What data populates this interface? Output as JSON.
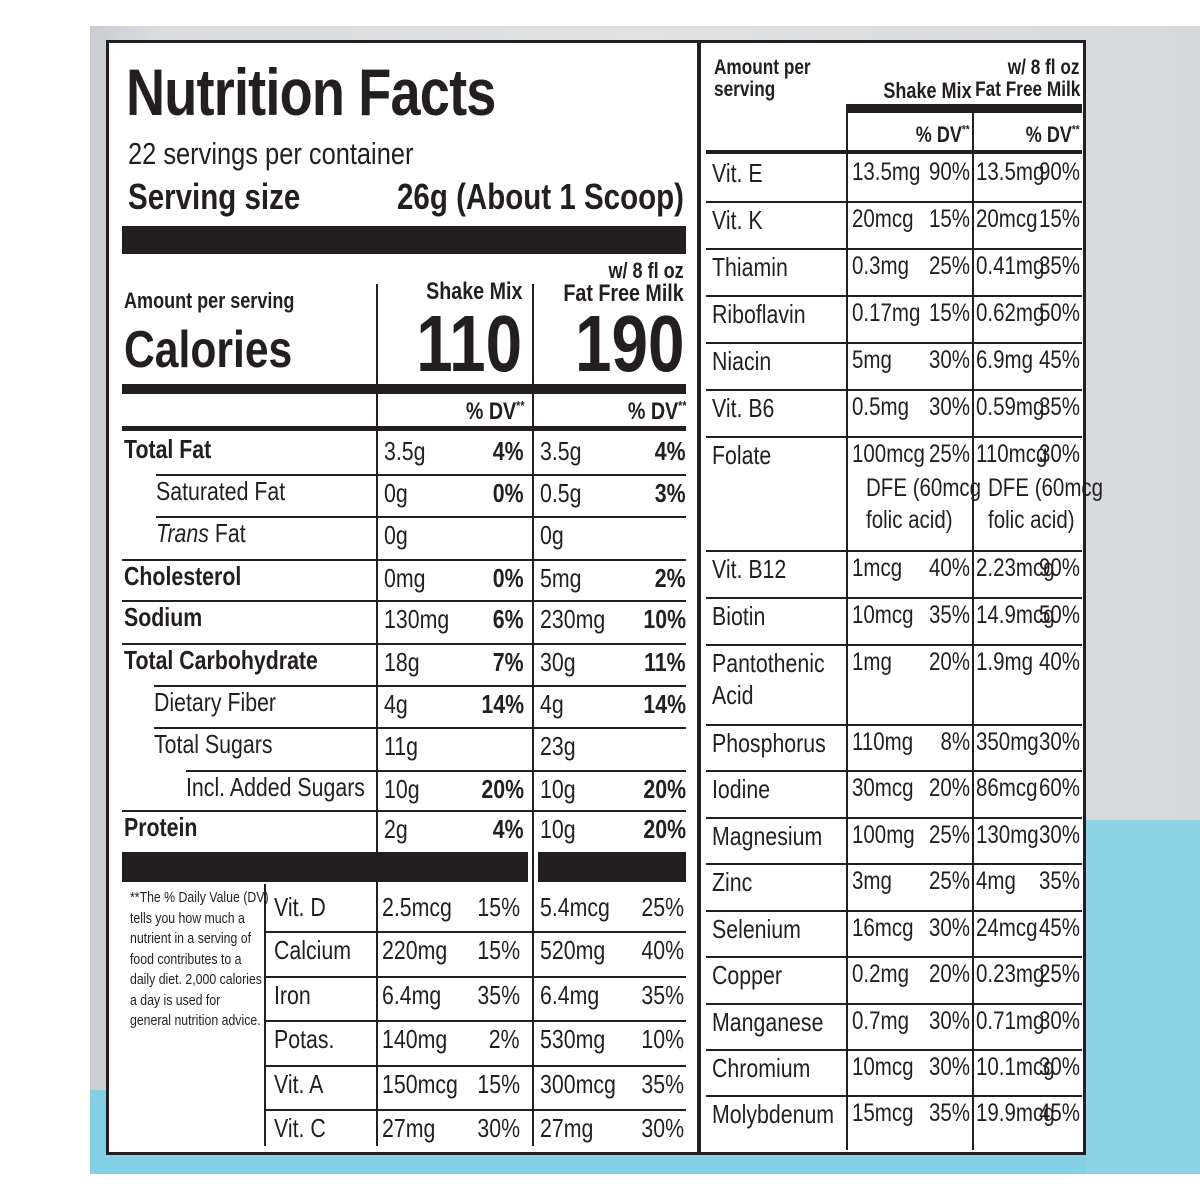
{
  "title": "Nutrition Facts",
  "servings_per_container": "22 servings per container",
  "serving_size_label": "Serving size",
  "serving_size_value": "26g (About 1 Scoop)",
  "amount_per_serving": "Amount per serving",
  "columns": {
    "shake_mix": "Shake Mix",
    "with_milk_line1": "w/ 8 fl oz",
    "with_milk_line2": "Fat Free Milk",
    "dv": "% DV",
    "dv_mark": "**"
  },
  "calories": {
    "label": "Calories",
    "shake_mix": "110",
    "with_milk": "190"
  },
  "nutrients": [
    {
      "label": "Total Fat",
      "mix_amt": "3.5g",
      "mix_dv": "4%",
      "milk_amt": "3.5g",
      "milk_dv": "4%"
    },
    {
      "label": "Saturated Fat",
      "mix_amt": "0g",
      "mix_dv": "0%",
      "milk_amt": "0.5g",
      "milk_dv": "3%"
    },
    {
      "label_italic": "Trans",
      "label": "Fat",
      "mix_amt": "0g",
      "mix_dv": "",
      "milk_amt": "0g",
      "milk_dv": ""
    },
    {
      "label": "Cholesterol",
      "mix_amt": "0mg",
      "mix_dv": "0%",
      "milk_amt": "5mg",
      "milk_dv": "2%"
    },
    {
      "label": "Sodium",
      "mix_amt": "130mg",
      "mix_dv": "6%",
      "milk_amt": "230mg",
      "milk_dv": "10%"
    },
    {
      "label": "Total Carbohydrate",
      "mix_amt": "18g",
      "mix_dv": "7%",
      "milk_amt": "30g",
      "milk_dv": "11%"
    },
    {
      "label": "Dietary Fiber",
      "mix_amt": "4g",
      "mix_dv": "14%",
      "milk_amt": "4g",
      "milk_dv": "14%"
    },
    {
      "label": "Total Sugars",
      "mix_amt": "11g",
      "mix_dv": "",
      "milk_amt": "23g",
      "milk_dv": ""
    },
    {
      "label": "Incl. Added Sugars",
      "mix_amt": "10g",
      "mix_dv": "20%",
      "milk_amt": "10g",
      "milk_dv": "20%"
    },
    {
      "label": "Protein",
      "mix_amt": "2g",
      "mix_dv": "4%",
      "milk_amt": "10g",
      "milk_dv": "20%"
    }
  ],
  "footnote": [
    "**The % Daily Value (DV)",
    "tells you how much a",
    "nutrient in a serving of",
    "food contributes to a",
    "daily diet. 2,000 calories",
    "a day is used for",
    "general nutrition advice."
  ],
  "vitamins_left": [
    {
      "label": "Vit. D",
      "mix_amt": "2.5mcg",
      "mix_dv": "15%",
      "milk_amt": "5.4mcg",
      "milk_dv": "25%"
    },
    {
      "label": "Calcium",
      "mix_amt": "220mg",
      "mix_dv": "15%",
      "milk_amt": "520mg",
      "milk_dv": "40%"
    },
    {
      "label": "Iron",
      "mix_amt": "6.4mg",
      "mix_dv": "35%",
      "milk_amt": "6.4mg",
      "milk_dv": "35%"
    },
    {
      "label": "Potas.",
      "mix_amt": "140mg",
      "mix_dv": "2%",
      "milk_amt": "530mg",
      "milk_dv": "10%"
    },
    {
      "label": "Vit. A",
      "mix_amt": "150mcg",
      "mix_dv": "15%",
      "milk_amt": "300mcg",
      "milk_dv": "35%"
    },
    {
      "label": "Vit. C",
      "mix_amt": "27mg",
      "mix_dv": "30%",
      "milk_amt": "27mg",
      "milk_dv": "30%"
    }
  ],
  "right_header": {
    "amount_line1": "Amount per",
    "amount_line2": "serving",
    "shake_mix": "Shake Mix",
    "milk_line1": "w/ 8 fl oz",
    "milk_line2": "Fat Free Milk",
    "dv": "% DV",
    "dv_mark": "**"
  },
  "vitamins_right": [
    {
      "label": "Vit. E",
      "mix_amt": "13.5mg",
      "mix_dv": "90%",
      "milk_amt": "13.5mg",
      "milk_dv": "90%"
    },
    {
      "label": "Vit. K",
      "mix_amt": "20mcg",
      "mix_dv": "15%",
      "milk_amt": "20mcg",
      "milk_dv": "15%"
    },
    {
      "label": "Thiamin",
      "mix_amt": "0.3mg",
      "mix_dv": "25%",
      "milk_amt": "0.41mg",
      "milk_dv": "35%"
    },
    {
      "label": "Riboflavin",
      "mix_amt": "0.17mg",
      "mix_dv": "15%",
      "milk_amt": "0.62mg",
      "milk_dv": "50%"
    },
    {
      "label": "Niacin",
      "mix_amt": "5mg",
      "mix_dv": "30%",
      "milk_amt": "6.9mg",
      "milk_dv": "45%"
    },
    {
      "label": "Vit. B6",
      "mix_amt": "0.5mg",
      "mix_dv": "30%",
      "milk_amt": "0.59mg",
      "milk_dv": "35%"
    },
    {
      "label": "Folate",
      "mix_amt": "100mcg",
      "mix_dv": "25%",
      "milk_amt": "110mcg",
      "milk_dv": "30%",
      "mix_sub1": "DFE (60mcg",
      "mix_sub2": "folic acid)",
      "milk_sub1": "DFE (60mcg",
      "milk_sub2": "folic acid)"
    },
    {
      "label": "Vit. B12",
      "mix_amt": "1mcg",
      "mix_dv": "40%",
      "milk_amt": "2.23mcg",
      "milk_dv": "90%"
    },
    {
      "label": "Biotin",
      "mix_amt": "10mcg",
      "mix_dv": "35%",
      "milk_amt": "14.9mcg",
      "milk_dv": "50%"
    },
    {
      "label": "Pantothenic",
      "label2": "Acid",
      "mix_amt": "1mg",
      "mix_dv": "20%",
      "milk_amt": "1.9mg",
      "milk_dv": "40%"
    },
    {
      "label": "Phosphorus",
      "mix_amt": "110mg",
      "mix_dv": "8%",
      "milk_amt": "350mg",
      "milk_dv": "30%"
    },
    {
      "label": "Iodine",
      "mix_amt": "30mcg",
      "mix_dv": "20%",
      "milk_amt": "86mcg",
      "milk_dv": "60%"
    },
    {
      "label": "Magnesium",
      "mix_amt": "100mg",
      "mix_dv": "25%",
      "milk_amt": "130mg",
      "milk_dv": "30%"
    },
    {
      "label": "Zinc",
      "mix_amt": "3mg",
      "mix_dv": "25%",
      "milk_amt": "4mg",
      "milk_dv": "35%"
    },
    {
      "label": "Selenium",
      "mix_amt": "16mcg",
      "mix_dv": "30%",
      "milk_amt": "24mcg",
      "milk_dv": "45%"
    },
    {
      "label": "Copper",
      "mix_amt": "0.2mg",
      "mix_dv": "20%",
      "milk_amt": "0.23mg",
      "milk_dv": "25%"
    },
    {
      "label": "Manganese",
      "mix_amt": "0.7mg",
      "mix_dv": "30%",
      "milk_amt": "0.71mg",
      "milk_dv": "30%"
    },
    {
      "label": "Chromium",
      "mix_amt": "10mcg",
      "mix_dv": "30%",
      "milk_amt": "10.1mcg",
      "milk_dv": "30%"
    },
    {
      "label": "Molybdenum",
      "mix_amt": "15mcg",
      "mix_dv": "35%",
      "milk_amt": "19.9mcg",
      "milk_dv": "45%"
    }
  ]
}
